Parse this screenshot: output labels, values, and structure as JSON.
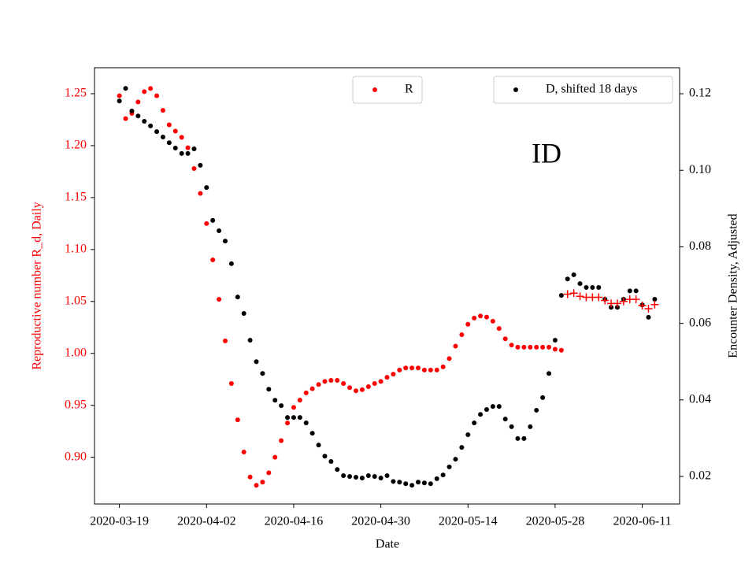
{
  "chart_data": {
    "type": "scatter",
    "annotation": "ID",
    "xlabel": "Date",
    "ylabel": "Reproductive number R_d, Daily",
    "y2label": "Encounter Density, Adjusted",
    "x": [
      "2020-03-19",
      "2020-03-20",
      "2020-03-21",
      "2020-03-22",
      "2020-03-23",
      "2020-03-24",
      "2020-03-25",
      "2020-03-26",
      "2020-03-27",
      "2020-03-28",
      "2020-03-29",
      "2020-03-30",
      "2020-03-31",
      "2020-04-01",
      "2020-04-02",
      "2020-04-03",
      "2020-04-04",
      "2020-04-05",
      "2020-04-06",
      "2020-04-07",
      "2020-04-08",
      "2020-04-09",
      "2020-04-10",
      "2020-04-11",
      "2020-04-12",
      "2020-04-13",
      "2020-04-14",
      "2020-04-15",
      "2020-04-16",
      "2020-04-17",
      "2020-04-18",
      "2020-04-19",
      "2020-04-20",
      "2020-04-21",
      "2020-04-22",
      "2020-04-23",
      "2020-04-24",
      "2020-04-25",
      "2020-04-26",
      "2020-04-27",
      "2020-04-28",
      "2020-04-29",
      "2020-04-30",
      "2020-05-01",
      "2020-05-02",
      "2020-05-03",
      "2020-05-04",
      "2020-05-05",
      "2020-05-06",
      "2020-05-07",
      "2020-05-08",
      "2020-05-09",
      "2020-05-10",
      "2020-05-11",
      "2020-05-12",
      "2020-05-13",
      "2020-05-14",
      "2020-05-15",
      "2020-05-16",
      "2020-05-17",
      "2020-05-18",
      "2020-05-19",
      "2020-05-20",
      "2020-05-21",
      "2020-05-22",
      "2020-05-23",
      "2020-05-24",
      "2020-05-25",
      "2020-05-26",
      "2020-05-27",
      "2020-05-28",
      "2020-05-29",
      "2020-05-30",
      "2020-05-31",
      "2020-06-01",
      "2020-06-02",
      "2020-06-03",
      "2020-06-04",
      "2020-06-05",
      "2020-06-06",
      "2020-06-07",
      "2020-06-08",
      "2020-06-09",
      "2020-06-10",
      "2020-06-11",
      "2020-06-12",
      "2020-06-13"
    ],
    "xlim": [
      "2020-03-15",
      "2020-06-17"
    ],
    "xticks": [
      "2020-03-19",
      "2020-04-02",
      "2020-04-16",
      "2020-04-30",
      "2020-05-14",
      "2020-05-28",
      "2020-06-11"
    ],
    "ylim": [
      0.855,
      1.275
    ],
    "yticks": [
      {
        "value": 0.9,
        "label": "0.90"
      },
      0.95,
      {
        "value": 1.0,
        "label": "1.00"
      },
      1.05,
      {
        "value": 1.1,
        "label": "1.10"
      },
      1.15,
      {
        "value": 1.2,
        "label": "1.20"
      },
      1.25
    ],
    "y2lim": [
      0.0128,
      0.1268
    ],
    "y2ticks": [
      0.02,
      0.04,
      0.06,
      0.08,
      {
        "value": 0.1,
        "label": "0.10"
      },
      0.12
    ],
    "series": [
      {
        "name": "R",
        "color": "#ff0000",
        "marker": "dot",
        "legend": "upper center",
        "values": [
          1.248,
          1.226,
          1.231,
          1.242,
          1.252,
          1.255,
          1.248,
          1.234,
          1.22,
          1.214,
          1.208,
          1.198,
          1.178,
          1.154,
          1.125,
          1.09,
          1.052,
          1.012,
          0.971,
          0.936,
          0.905,
          0.881,
          0.873,
          0.876,
          0.885,
          0.9,
          0.916,
          0.933,
          0.948,
          0.955,
          0.962,
          0.966,
          0.97,
          0.973,
          0.974,
          0.974,
          0.971,
          0.967,
          0.964,
          0.965,
          0.968,
          0.971,
          0.973,
          0.977,
          0.98,
          0.984,
          0.986,
          0.986,
          0.986,
          0.984,
          0.984,
          0.984,
          0.987,
          0.995,
          1.007,
          1.018,
          1.028,
          1.034,
          1.036,
          1.035,
          1.031,
          1.024,
          1.014,
          1.008,
          1.006,
          1.006,
          1.006,
          1.006,
          1.006,
          1.006,
          1.004,
          1.003,
          null,
          null,
          null,
          null,
          null,
          null,
          null,
          null,
          null,
          null,
          null,
          null,
          null,
          null,
          null
        ]
      },
      {
        "name": "D, shifted 18 days",
        "color": "#000000",
        "marker": "dot",
        "axis": "y2",
        "legend": "upper right",
        "values": [
          0.1181,
          0.1214,
          0.1155,
          0.1142,
          0.1128,
          0.1116,
          0.1101,
          0.1087,
          0.1072,
          0.1058,
          0.1044,
          0.1044,
          0.1056,
          0.1013,
          0.0955,
          0.0869,
          0.0842,
          0.0815,
          0.0756,
          0.0669,
          0.0626,
          0.0556,
          0.05,
          0.0469,
          0.0428,
          0.0399,
          0.0385,
          0.0354,
          0.0354,
          0.0354,
          0.034,
          0.0313,
          0.0282,
          0.0253,
          0.0239,
          0.0218,
          0.0202,
          0.02,
          0.0198,
          0.0196,
          0.0202,
          0.02,
          0.0196,
          0.0202,
          0.0187,
          0.0185,
          0.0181,
          0.0177,
          0.0185,
          0.0183,
          0.0181,
          0.0194,
          0.0204,
          0.0225,
          0.0245,
          0.0276,
          0.0309,
          0.034,
          0.0362,
          0.0375,
          0.0383,
          0.0383,
          0.035,
          0.033,
          0.0299,
          0.0299,
          0.033,
          0.0373,
          0.0406,
          0.0469,
          0.0556,
          0.0673,
          0.0716,
          0.0727,
          0.0704,
          0.0694,
          0.0694,
          0.0694,
          0.0663,
          0.0642,
          0.0642,
          0.0663,
          0.0685,
          0.0685,
          0.0648,
          0.0616,
          0.0663
        ]
      },
      {
        "color": "#ff0000",
        "marker": "plus",
        "values": [
          null,
          null,
          null,
          null,
          null,
          null,
          null,
          null,
          null,
          null,
          null,
          null,
          null,
          null,
          null,
          null,
          null,
          null,
          null,
          null,
          null,
          null,
          null,
          null,
          null,
          null,
          null,
          null,
          null,
          null,
          null,
          null,
          null,
          null,
          null,
          null,
          null,
          null,
          null,
          null,
          null,
          null,
          null,
          null,
          null,
          null,
          null,
          null,
          null,
          null,
          null,
          null,
          null,
          null,
          null,
          null,
          null,
          null,
          null,
          null,
          null,
          null,
          null,
          null,
          null,
          null,
          null,
          null,
          null,
          null,
          null,
          null,
          1.057,
          1.058,
          1.055,
          1.054,
          1.054,
          1.054,
          1.051,
          1.048,
          1.048,
          1.05,
          1.052,
          1.052,
          1.046,
          1.043,
          1.047
        ]
      }
    ]
  }
}
